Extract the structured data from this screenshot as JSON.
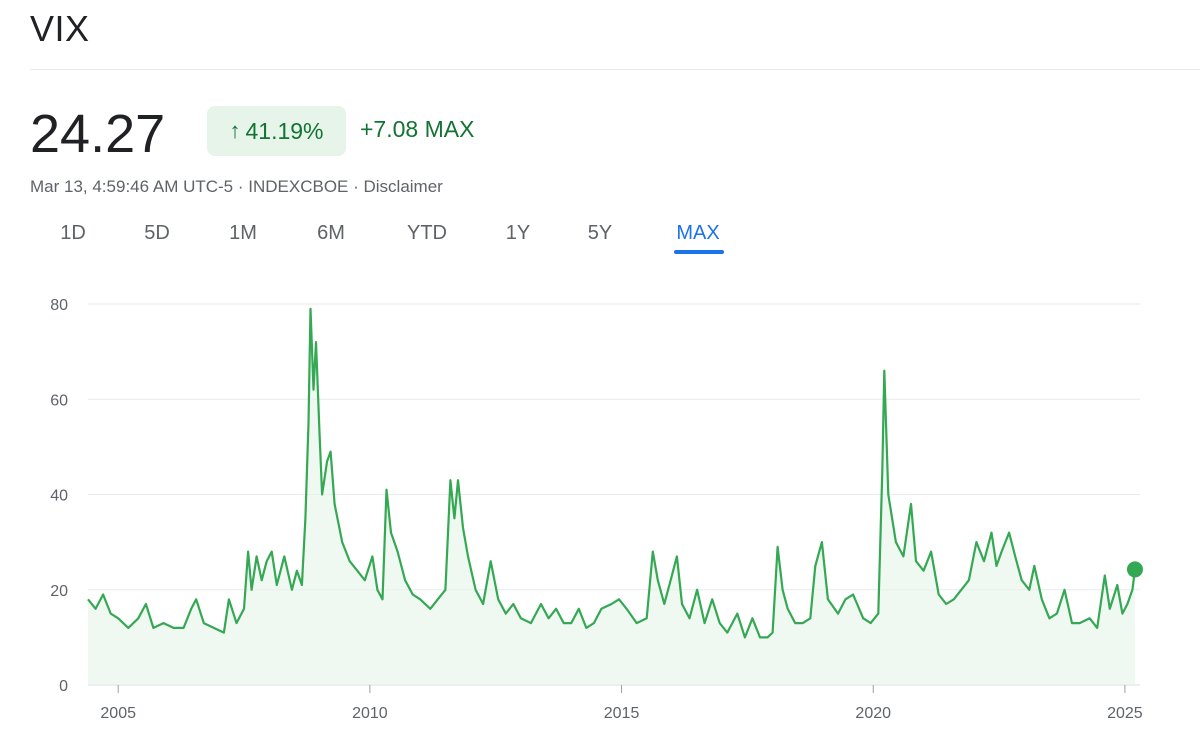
{
  "header": {
    "title": "VIX"
  },
  "quote": {
    "price": "24.27",
    "change_percent": "41.19%",
    "change_abs": "+7.08 MAX",
    "meta": "Mar 13, 4:59:46 AM UTC-5 · INDEXCBOE · Disclaimer"
  },
  "icons": {
    "change_arrow": "arrow-up-icon"
  },
  "tabs": [
    {
      "label": "1D",
      "active": false
    },
    {
      "label": "5D",
      "active": false
    },
    {
      "label": "1M",
      "active": false
    },
    {
      "label": "6M",
      "active": false
    },
    {
      "label": "YTD",
      "active": false
    },
    {
      "label": "1Y",
      "active": false
    },
    {
      "label": "5Y",
      "active": false
    },
    {
      "label": "MAX",
      "active": true
    }
  ],
  "colors": {
    "line": "#34a853",
    "area": "#e6f4ea",
    "positive": "#137333",
    "active_tab": "#1a73e8",
    "grid": "#e8eaed"
  },
  "chart_data": {
    "type": "line",
    "title": "",
    "xlabel": "",
    "ylabel": "",
    "xlim": [
      2004.4,
      2025.3
    ],
    "ylim": [
      0,
      80
    ],
    "x_ticks": [
      2005,
      2010,
      2015,
      2020,
      2025
    ],
    "x_tick_labels": [
      "2005",
      "2010",
      "2015",
      "2020",
      "2025"
    ],
    "y_ticks": [
      0,
      20,
      40,
      60,
      80
    ],
    "y_tick_labels": [
      "0",
      "20",
      "40",
      "60",
      "80"
    ],
    "grid": true,
    "series": [
      {
        "values": [
          [
            2004.4,
            18
          ],
          [
            2004.55,
            16
          ],
          [
            2004.7,
            19
          ],
          [
            2004.85,
            15
          ],
          [
            2005.0,
            14
          ],
          [
            2005.2,
            12
          ],
          [
            2005.4,
            14
          ],
          [
            2005.55,
            17
          ],
          [
            2005.7,
            12
          ],
          [
            2005.9,
            13
          ],
          [
            2006.1,
            12
          ],
          [
            2006.3,
            12
          ],
          [
            2006.45,
            16
          ],
          [
            2006.55,
            18
          ],
          [
            2006.7,
            13
          ],
          [
            2006.9,
            12
          ],
          [
            2007.1,
            11
          ],
          [
            2007.2,
            18
          ],
          [
            2007.35,
            13
          ],
          [
            2007.5,
            16
          ],
          [
            2007.58,
            28
          ],
          [
            2007.65,
            20
          ],
          [
            2007.75,
            27
          ],
          [
            2007.85,
            22
          ],
          [
            2007.95,
            26
          ],
          [
            2008.05,
            28
          ],
          [
            2008.15,
            21
          ],
          [
            2008.3,
            27
          ],
          [
            2008.45,
            20
          ],
          [
            2008.55,
            24
          ],
          [
            2008.65,
            21
          ],
          [
            2008.72,
            35
          ],
          [
            2008.78,
            55
          ],
          [
            2008.82,
            79
          ],
          [
            2008.88,
            62
          ],
          [
            2008.93,
            72
          ],
          [
            2009.0,
            53
          ],
          [
            2009.05,
            40
          ],
          [
            2009.15,
            47
          ],
          [
            2009.22,
            49
          ],
          [
            2009.3,
            38
          ],
          [
            2009.45,
            30
          ],
          [
            2009.6,
            26
          ],
          [
            2009.75,
            24
          ],
          [
            2009.9,
            22
          ],
          [
            2010.05,
            27
          ],
          [
            2010.15,
            20
          ],
          [
            2010.25,
            18
          ],
          [
            2010.33,
            41
          ],
          [
            2010.42,
            32
          ],
          [
            2010.55,
            28
          ],
          [
            2010.7,
            22
          ],
          [
            2010.85,
            19
          ],
          [
            2011.0,
            18
          ],
          [
            2011.2,
            16
          ],
          [
            2011.35,
            18
          ],
          [
            2011.5,
            20
          ],
          [
            2011.6,
            43
          ],
          [
            2011.68,
            35
          ],
          [
            2011.75,
            43
          ],
          [
            2011.85,
            33
          ],
          [
            2011.95,
            27
          ],
          [
            2012.1,
            20
          ],
          [
            2012.25,
            17
          ],
          [
            2012.4,
            26
          ],
          [
            2012.55,
            18
          ],
          [
            2012.7,
            15
          ],
          [
            2012.85,
            17
          ],
          [
            2013.0,
            14
          ],
          [
            2013.2,
            13
          ],
          [
            2013.4,
            17
          ],
          [
            2013.55,
            14
          ],
          [
            2013.7,
            16
          ],
          [
            2013.85,
            13
          ],
          [
            2014.0,
            13
          ],
          [
            2014.15,
            16
          ],
          [
            2014.3,
            12
          ],
          [
            2014.45,
            13
          ],
          [
            2014.6,
            16
          ],
          [
            2014.8,
            17
          ],
          [
            2014.95,
            18
          ],
          [
            2015.1,
            16
          ],
          [
            2015.3,
            13
          ],
          [
            2015.5,
            14
          ],
          [
            2015.62,
            28
          ],
          [
            2015.72,
            22
          ],
          [
            2015.85,
            17
          ],
          [
            2016.0,
            23
          ],
          [
            2016.1,
            27
          ],
          [
            2016.2,
            17
          ],
          [
            2016.35,
            14
          ],
          [
            2016.5,
            20
          ],
          [
            2016.65,
            13
          ],
          [
            2016.8,
            18
          ],
          [
            2016.95,
            13
          ],
          [
            2017.1,
            11
          ],
          [
            2017.3,
            15
          ],
          [
            2017.45,
            10
          ],
          [
            2017.6,
            14
          ],
          [
            2017.75,
            10
          ],
          [
            2017.9,
            10
          ],
          [
            2018.0,
            11
          ],
          [
            2018.1,
            29
          ],
          [
            2018.2,
            20
          ],
          [
            2018.3,
            16
          ],
          [
            2018.45,
            13
          ],
          [
            2018.6,
            13
          ],
          [
            2018.75,
            14
          ],
          [
            2018.85,
            25
          ],
          [
            2018.98,
            30
          ],
          [
            2019.1,
            18
          ],
          [
            2019.3,
            15
          ],
          [
            2019.45,
            18
          ],
          [
            2019.6,
            19
          ],
          [
            2019.8,
            14
          ],
          [
            2019.95,
            13
          ],
          [
            2020.1,
            15
          ],
          [
            2020.18,
            45
          ],
          [
            2020.22,
            66
          ],
          [
            2020.3,
            40
          ],
          [
            2020.45,
            30
          ],
          [
            2020.6,
            27
          ],
          [
            2020.75,
            38
          ],
          [
            2020.85,
            26
          ],
          [
            2021.0,
            24
          ],
          [
            2021.15,
            28
          ],
          [
            2021.3,
            19
          ],
          [
            2021.45,
            17
          ],
          [
            2021.6,
            18
          ],
          [
            2021.75,
            20
          ],
          [
            2021.9,
            22
          ],
          [
            2022.05,
            30
          ],
          [
            2022.2,
            26
          ],
          [
            2022.35,
            32
          ],
          [
            2022.45,
            25
          ],
          [
            2022.55,
            28
          ],
          [
            2022.7,
            32
          ],
          [
            2022.82,
            27
          ],
          [
            2022.95,
            22
          ],
          [
            2023.1,
            20
          ],
          [
            2023.2,
            25
          ],
          [
            2023.35,
            18
          ],
          [
            2023.5,
            14
          ],
          [
            2023.65,
            15
          ],
          [
            2023.8,
            20
          ],
          [
            2023.95,
            13
          ],
          [
            2024.1,
            13
          ],
          [
            2024.3,
            14
          ],
          [
            2024.45,
            12
          ],
          [
            2024.6,
            23
          ],
          [
            2024.7,
            16
          ],
          [
            2024.85,
            21
          ],
          [
            2024.95,
            15
          ],
          [
            2025.05,
            17
          ],
          [
            2025.15,
            20
          ],
          [
            2025.2,
            24.27
          ]
        ]
      }
    ]
  }
}
